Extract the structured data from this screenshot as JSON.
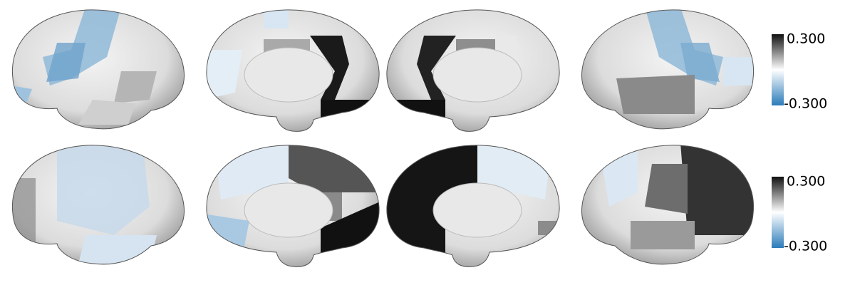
{
  "colorbars": [
    {
      "max": "0.300",
      "min": "-0.300"
    },
    {
      "max": "0.300",
      "min": "-0.300"
    }
  ]
}
